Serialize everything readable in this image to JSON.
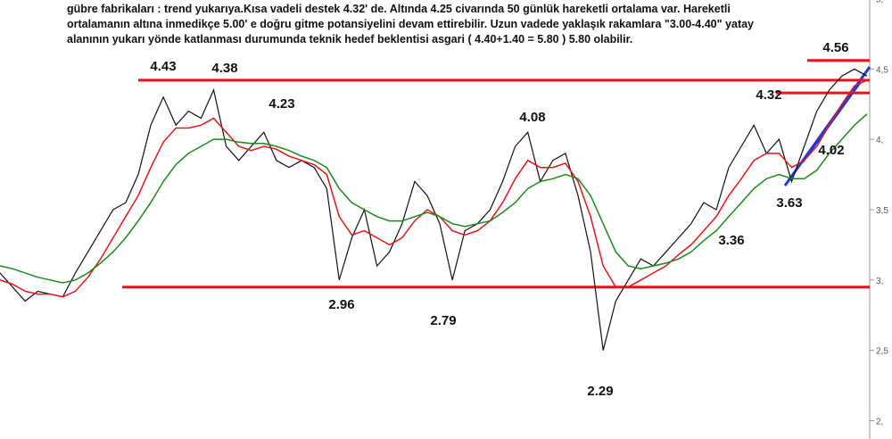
{
  "chart_data": {
    "type": "line",
    "title_lines": [
      "gübre fabrikaları : trend yukarıya.Kısa vadeli destek 4.32' de. Altında 4.25 civarında 50 günlük hareketli ortalama var. Hareketli",
      "ortalamanın altına inmedikçe 5.00' e doğru gitme potansiyelini devam ettirebilir. Uzun vadede yaklaşık rakamlara \"3.00-4.40\" yatay",
      "alanının yukarı yönde katlanması durumunda teknik hedef beklentisi asgari ( 4.40+1.40 = 5.80 ) 5.80 olabilir."
    ],
    "ylim": [
      1.87,
      4.99
    ],
    "yticks": [
      {
        "value": 2,
        "label": "2,"
      },
      {
        "value": 2.5,
        "label": "2,5"
      },
      {
        "value": 3,
        "label": "3,"
      },
      {
        "value": 3.5,
        "label": "3,5"
      },
      {
        "value": 4,
        "label": "4,"
      },
      {
        "value": 4.5,
        "label": "4,5"
      },
      {
        "value": 5,
        "label": "5,"
      }
    ],
    "series": [
      {
        "color": "#111111",
        "values": [
          3.05,
          2.95,
          2.85,
          2.92,
          2.9,
          2.88,
          3.05,
          3.2,
          3.35,
          3.5,
          3.55,
          3.75,
          4.1,
          4.3,
          4.1,
          4.2,
          4.15,
          4.35,
          3.95,
          3.85,
          3.95,
          4.05,
          3.85,
          3.8,
          3.85,
          3.8,
          3.65,
          3.0,
          3.3,
          3.5,
          3.1,
          3.2,
          3.4,
          3.7,
          3.6,
          3.4,
          3.0,
          3.35,
          3.4,
          3.5,
          3.7,
          3.95,
          4.05,
          3.7,
          3.85,
          3.9,
          3.6,
          3.2,
          2.5,
          2.85,
          3.0,
          3.15,
          3.1,
          3.2,
          3.3,
          3.4,
          3.55,
          3.5,
          3.8,
          3.95,
          4.1,
          3.9,
          4.0,
          3.7,
          3.95,
          4.2,
          4.35,
          4.45,
          4.5,
          4.45
        ]
      },
      {
        "color": "#e8141a",
        "values": [
          3.0,
          2.97,
          2.92,
          2.9,
          2.9,
          2.88,
          2.92,
          3.02,
          3.15,
          3.3,
          3.45,
          3.6,
          3.8,
          3.98,
          4.08,
          4.08,
          4.1,
          4.15,
          4.05,
          3.95,
          3.92,
          3.95,
          3.93,
          3.88,
          3.85,
          3.82,
          3.75,
          3.45,
          3.32,
          3.35,
          3.3,
          3.25,
          3.3,
          3.42,
          3.5,
          3.45,
          3.35,
          3.32,
          3.35,
          3.42,
          3.55,
          3.72,
          3.85,
          3.8,
          3.8,
          3.83,
          3.7,
          3.45,
          3.1,
          2.95,
          2.95,
          3.0,
          3.05,
          3.1,
          3.18,
          3.25,
          3.35,
          3.45,
          3.6,
          3.72,
          3.85,
          3.9,
          3.9,
          3.8,
          3.85,
          3.95,
          4.1,
          4.25,
          4.38,
          4.42
        ]
      },
      {
        "color": "#1a8a1a",
        "values": [
          3.1,
          3.08,
          3.05,
          3.02,
          3.0,
          2.98,
          3.0,
          3.05,
          3.12,
          3.2,
          3.3,
          3.42,
          3.55,
          3.7,
          3.82,
          3.9,
          3.95,
          4.0,
          4.0,
          3.98,
          3.97,
          3.97,
          3.95,
          3.92,
          3.88,
          3.85,
          3.8,
          3.65,
          3.55,
          3.5,
          3.45,
          3.42,
          3.42,
          3.45,
          3.48,
          3.45,
          3.4,
          3.38,
          3.4,
          3.42,
          3.48,
          3.55,
          3.65,
          3.7,
          3.72,
          3.75,
          3.72,
          3.6,
          3.4,
          3.2,
          3.1,
          3.08,
          3.1,
          3.12,
          3.15,
          3.2,
          3.28,
          3.35,
          3.45,
          3.55,
          3.65,
          3.72,
          3.75,
          3.72,
          3.72,
          3.78,
          3.9,
          4.0,
          4.1,
          4.18
        ]
      }
    ],
    "levels": [
      {
        "value": 4.42,
        "color": "#e8141a"
      },
      {
        "value": 2.95,
        "color": "#e8141a"
      },
      {
        "value": 4.56,
        "color": "#e8141a"
      },
      {
        "value": 4.33,
        "color": "#e8141a"
      }
    ],
    "annotations": [
      "4.43",
      "4.38",
      "4.23",
      "2.96",
      "2.79",
      "4.08",
      "2.29",
      "3.36",
      "3.63",
      "4.32",
      "4.02",
      "4.56"
    ]
  }
}
